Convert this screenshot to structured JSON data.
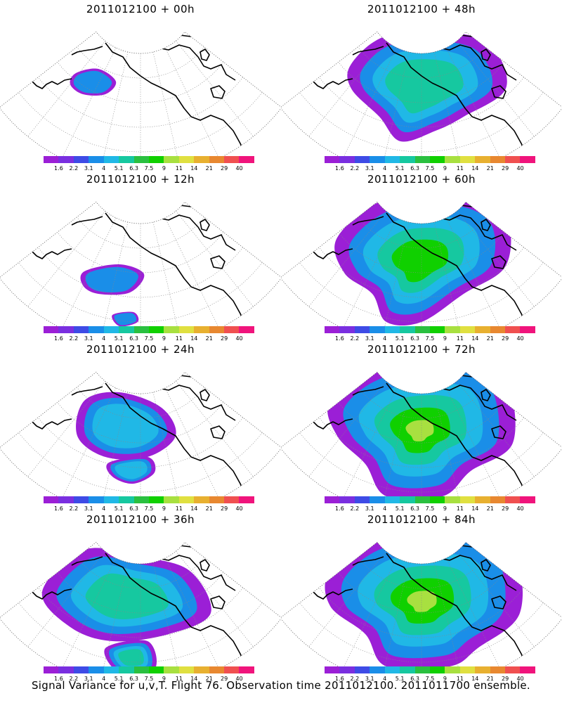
{
  "valid_time": "2011012100",
  "panels": [
    {
      "title": "2011012100 + 00h",
      "lead": "00h",
      "intensity": 0
    },
    {
      "title": "2011012100 + 48h",
      "lead": "48h",
      "intensity": 4
    },
    {
      "title": "2011012100 + 12h",
      "lead": "12h",
      "intensity": 1
    },
    {
      "title": "2011012100 + 60h",
      "lead": "60h",
      "intensity": 5
    },
    {
      "title": "2011012100 + 24h",
      "lead": "24h",
      "intensity": 2
    },
    {
      "title": "2011012100 + 72h",
      "lead": "72h",
      "intensity": 6
    },
    {
      "title": "2011012100 + 36h",
      "lead": "36h",
      "intensity": 3
    },
    {
      "title": "2011012100 + 84h",
      "lead": "84h",
      "intensity": 7
    }
  ],
  "colorbar": {
    "labels": [
      "1.6",
      "2.2",
      "3.1",
      "4",
      "5.1",
      "6.3",
      "7.5",
      "9",
      "11",
      "14",
      "21",
      "29",
      "40"
    ],
    "colors": [
      "#9b1fd6",
      "#7a2fe0",
      "#3e4be6",
      "#1a8ee8",
      "#20b8e6",
      "#16c8a0",
      "#2ac040",
      "#10d000",
      "#a8e040",
      "#e0e040",
      "#e8b030",
      "#e88830",
      "#f05050",
      "#f0147c"
    ]
  },
  "caption": "Signal Variance for u,v,T. Flight 76. Observation time 2011012100. 2011011700 ensemble."
}
